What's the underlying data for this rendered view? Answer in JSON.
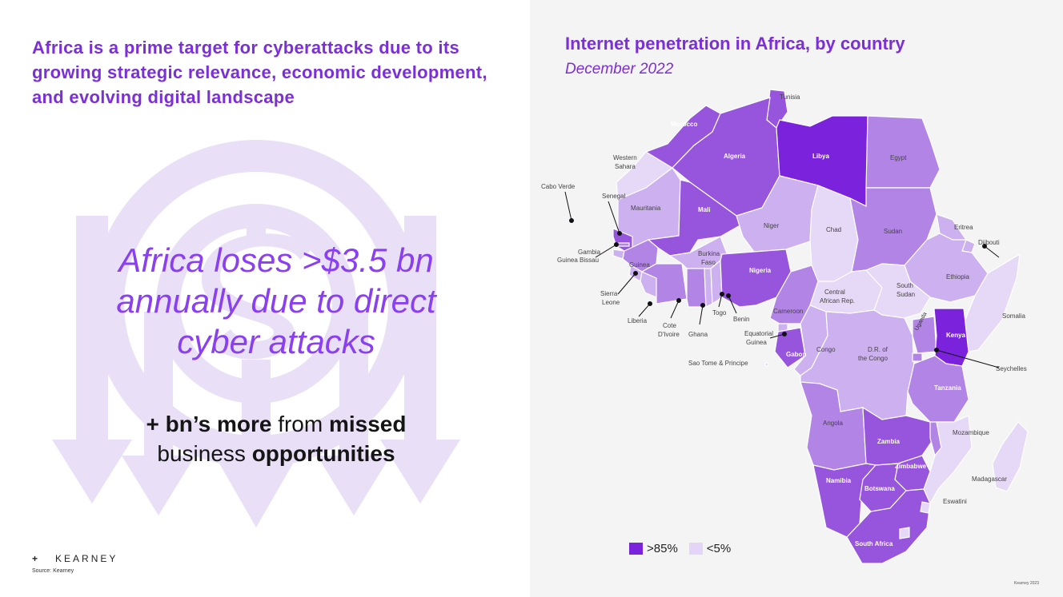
{
  "left": {
    "headline": "Africa is a prime target for cyberattacks due to its growing strategic relevance, economic development, and evolving digital landscape",
    "big_line1": "Africa loses >$3.5 bn",
    "big_line2": "annually due to direct",
    "big_line3": "cyber attacks",
    "sub_plus": "+ bn’s more",
    "sub_from": " from ",
    "sub_missed": "missed",
    "sub_business": "business ",
    "sub_opportunities": "opportunities",
    "logo_plus": "+",
    "logo_text": "KEARNEY",
    "source": "Source: Kearney",
    "background_icon": "dollar-coin-with-arrows-icon"
  },
  "map": {
    "title": "Internet penetration in Africa, by country",
    "subtitle": "December 2022",
    "credit": "Kearney 2023",
    "legend": [
      {
        "label": ">85%",
        "color": "#7b22dd"
      },
      {
        "label": "<5%",
        "color": "#e4d4f7"
      }
    ],
    "shade_colors": {
      "s1": "#e6d8f7",
      "s2": "#cdb0ef",
      "s3": "#b184e6",
      "s4": "#9655dc",
      "s5": "#7b22dd"
    },
    "labels": {
      "tunisia": "Tunisia",
      "morocco": "Morocco",
      "algeria": "Algeria",
      "libya": "Libya",
      "egypt": "Egypt",
      "western_sahara_1": "Western",
      "western_sahara_2": "Sahara",
      "cabo_verde": "Cabo Verde",
      "senegal": "Senegal",
      "mauritania": "Mauritania",
      "mali": "Mali",
      "niger": "Niger",
      "chad": "Chad",
      "sudan": "Sudan",
      "eritrea": "Eritrea",
      "djibouti": "Djibouti",
      "gambia": "Gambia",
      "guinea_bissau": "Guinea Bissau",
      "guinea": "Guinea",
      "burkina_1": "Burkina",
      "burkina_2": "Faso",
      "nigeria": "Nigeria",
      "ethiopia": "Ethiopia",
      "sierra_1": "Sierra",
      "sierra_2": "Leone",
      "liberia": "Liberia",
      "cote_1": "Cote",
      "cote_2": "D'Ivoire",
      "ghana": "Ghana",
      "togo": "Togo",
      "benin": "Benin",
      "car_1": "Central",
      "car_2": "African Rep.",
      "south_sudan_1": "South",
      "south_sudan_2": "Sudan",
      "somalia": "Somalia",
      "cameroon": "Cameroon",
      "uganda": "Uganda",
      "kenya": "Kenya",
      "eq_guinea_1": "Equatorial",
      "eq_guinea_2": "Guinea",
      "gabon": "Gabon",
      "congo": "Congo",
      "drc_1": "D.R. of",
      "drc_2": "the Congo",
      "sao_tome": "Sao Tome & Principe",
      "seychelles": "Seychelles",
      "tanzania": "Tanzania",
      "angola": "Angola",
      "mozambique": "Mozambique",
      "zambia": "Zambia",
      "zimbabwe": "Zimbabwe",
      "madagascar": "Madagascar",
      "namibia": "Namibia",
      "botswana": "Botswana",
      "eswatini": "Eswatini",
      "south_africa": "South Africa"
    }
  }
}
